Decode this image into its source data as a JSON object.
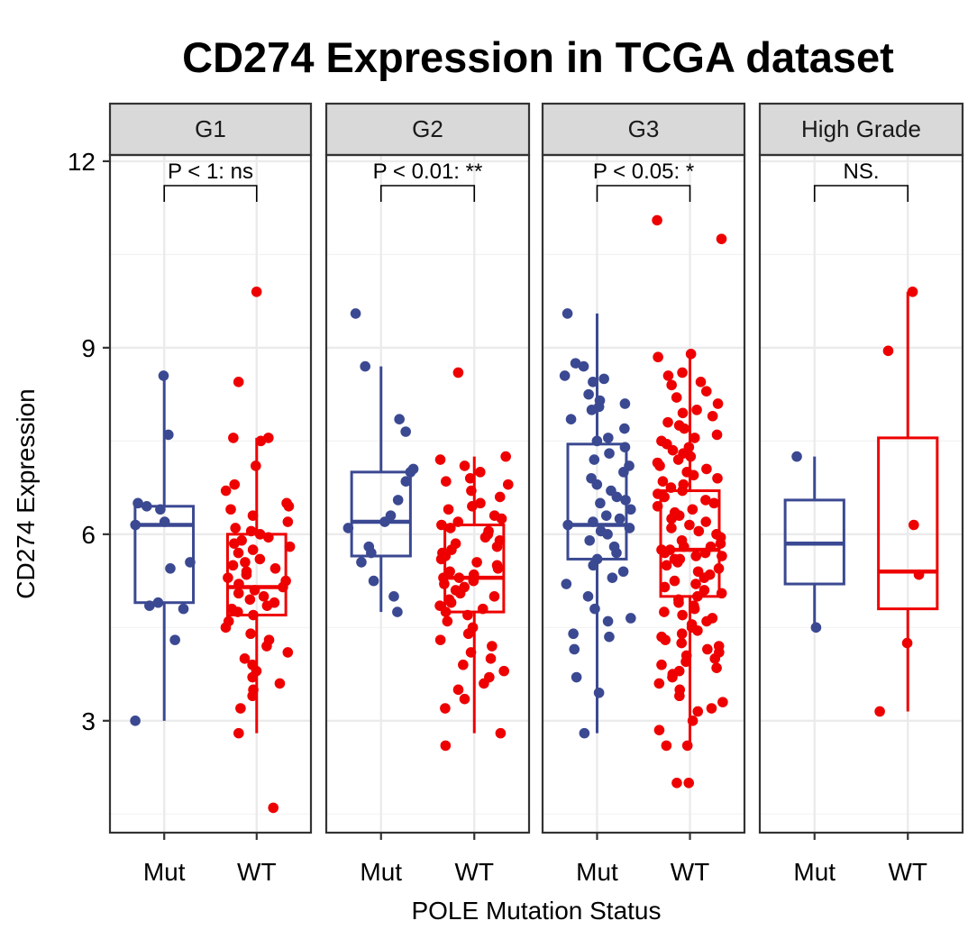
{
  "chart_data": {
    "type": "box",
    "title": "CD274 Expression in TCGA dataset",
    "xlabel": "POLE Mutation Status",
    "ylabel": "CD274 Expression",
    "ylim": [
      1.2,
      12.1
    ],
    "yticks": [
      3,
      6,
      9,
      12
    ],
    "grid": true,
    "categories": [
      "Mut",
      "WT"
    ],
    "colors": {
      "Mut": "#3B4992",
      "WT": "#EE0000"
    },
    "panels": [
      {
        "name": "G1",
        "significance": "P < 1: ns",
        "groups": [
          {
            "category": "Mut",
            "q1": 4.9,
            "median": 6.15,
            "q3": 6.45,
            "whisker_low": 3.0,
            "whisker_high": 8.55,
            "points": [
              8.55,
              7.6,
              6.5,
              6.45,
              6.4,
              6.2,
              6.15,
              5.55,
              5.45,
              4.9,
              4.85,
              4.8,
              4.3,
              3.0
            ]
          },
          {
            "category": "WT",
            "q1": 4.7,
            "median": 5.15,
            "q3": 6.0,
            "whisker_low": 2.8,
            "whisker_high": 7.55,
            "points": [
              9.9,
              8.45,
              7.55,
              7.55,
              7.5,
              7.1,
              6.8,
              6.7,
              6.5,
              6.45,
              6.4,
              6.3,
              6.2,
              6.1,
              6.05,
              6.0,
              5.95,
              5.9,
              5.85,
              5.8,
              5.75,
              5.7,
              5.6,
              5.55,
              5.5,
              5.45,
              5.4,
              5.35,
              5.3,
              5.25,
              5.2,
              5.15,
              5.1,
              5.05,
              5.0,
              4.95,
              4.9,
              4.85,
              4.8,
              4.75,
              4.7,
              4.6,
              4.5,
              4.4,
              4.3,
              4.2,
              4.1,
              4.0,
              3.9,
              3.8,
              3.7,
              3.6,
              3.5,
              3.4,
              3.2,
              2.8,
              1.6
            ]
          }
        ]
      },
      {
        "name": "G2",
        "significance": "P < 0.01: **",
        "groups": [
          {
            "category": "Mut",
            "q1": 5.65,
            "median": 6.2,
            "q3": 7.0,
            "whisker_low": 4.75,
            "whisker_high": 8.7,
            "points": [
              9.55,
              8.7,
              7.85,
              7.65,
              7.05,
              7.0,
              6.85,
              6.55,
              6.3,
              6.2,
              6.1,
              5.8,
              5.7,
              5.55,
              5.25,
              5.0,
              4.75
            ]
          },
          {
            "category": "WT",
            "q1": 4.75,
            "median": 5.3,
            "q3": 6.15,
            "whisker_low": 2.8,
            "whisker_high": 7.25,
            "points": [
              8.6,
              7.25,
              7.2,
              7.1,
              7.0,
              6.9,
              6.85,
              6.8,
              6.7,
              6.6,
              6.5,
              6.45,
              6.4,
              6.3,
              6.25,
              6.2,
              6.15,
              6.1,
              6.05,
              6.0,
              5.95,
              5.9,
              5.85,
              5.8,
              5.75,
              5.7,
              5.65,
              5.6,
              5.55,
              5.5,
              5.45,
              5.4,
              5.35,
              5.3,
              5.3,
              5.25,
              5.2,
              5.15,
              5.1,
              5.05,
              5.0,
              4.95,
              4.9,
              4.85,
              4.8,
              4.75,
              4.7,
              4.6,
              4.5,
              4.4,
              4.3,
              4.2,
              4.1,
              4.0,
              3.9,
              3.8,
              3.7,
              3.6,
              3.5,
              3.35,
              3.2,
              2.8,
              2.6
            ]
          }
        ]
      },
      {
        "name": "G3",
        "significance": "P < 0.05: *",
        "groups": [
          {
            "category": "Mut",
            "q1": 5.6,
            "median": 6.15,
            "q3": 7.45,
            "whisker_low": 2.8,
            "whisker_high": 9.55,
            "points": [
              9.55,
              8.75,
              8.7,
              8.55,
              8.5,
              8.45,
              8.25,
              8.15,
              8.1,
              8.05,
              8.0,
              7.85,
              7.7,
              7.55,
              7.5,
              7.4,
              7.3,
              7.2,
              7.1,
              7.0,
              6.9,
              6.8,
              6.7,
              6.6,
              6.55,
              6.5,
              6.4,
              6.3,
              6.25,
              6.2,
              6.15,
              6.1,
              6.05,
              6.0,
              5.9,
              5.8,
              5.7,
              5.6,
              5.5,
              5.4,
              5.3,
              5.2,
              5.0,
              4.8,
              4.65,
              4.6,
              4.4,
              4.35,
              4.15,
              3.7,
              3.45,
              2.8
            ]
          },
          {
            "category": "WT",
            "q1": 5.0,
            "median": 5.75,
            "q3": 6.7,
            "whisker_low": 2.6,
            "whisker_high": 8.9,
            "points": [
              11.05,
              10.75,
              8.9,
              8.85,
              8.6,
              8.55,
              8.45,
              8.4,
              8.3,
              8.2,
              8.1,
              8.0,
              7.95,
              7.9,
              7.8,
              7.75,
              7.7,
              7.6,
              7.55,
              7.5,
              7.45,
              7.4,
              7.35,
              7.3,
              7.25,
              7.2,
              7.15,
              7.1,
              7.05,
              7.0,
              6.95,
              6.9,
              6.85,
              6.8,
              6.75,
              6.7,
              6.65,
              6.6,
              6.55,
              6.5,
              6.45,
              6.4,
              6.35,
              6.3,
              6.25,
              6.2,
              6.15,
              6.1,
              6.05,
              6.0,
              5.95,
              5.9,
              5.85,
              5.8,
              5.8,
              5.75,
              5.75,
              5.7,
              5.7,
              5.65,
              5.65,
              5.6,
              5.6,
              5.55,
              5.5,
              5.45,
              5.4,
              5.35,
              5.3,
              5.25,
              5.2,
              5.15,
              5.1,
              5.05,
              5.0,
              4.95,
              4.9,
              4.85,
              4.8,
              4.75,
              4.7,
              4.65,
              4.6,
              4.55,
              4.5,
              4.45,
              4.4,
              4.35,
              4.3,
              4.25,
              4.2,
              4.15,
              4.1,
              4.05,
              4.0,
              3.95,
              3.9,
              3.85,
              3.8,
              3.75,
              3.7,
              3.6,
              3.5,
              3.4,
              3.3,
              3.2,
              3.15,
              3.0,
              2.85,
              2.6,
              2.6,
              2.0,
              2.0
            ]
          }
        ]
      },
      {
        "name": "High Grade",
        "significance": "NS.",
        "groups": [
          {
            "category": "Mut",
            "q1": 5.2,
            "median": 5.85,
            "q3": 6.55,
            "whisker_low": 4.5,
            "whisker_high": 7.25,
            "points": [
              7.25,
              4.5
            ]
          },
          {
            "category": "WT",
            "q1": 4.8,
            "median": 5.4,
            "q3": 7.55,
            "whisker_low": 3.15,
            "whisker_high": 9.9,
            "points": [
              9.9,
              8.95,
              6.15,
              5.35,
              4.25,
              3.15
            ]
          }
        ]
      }
    ]
  }
}
